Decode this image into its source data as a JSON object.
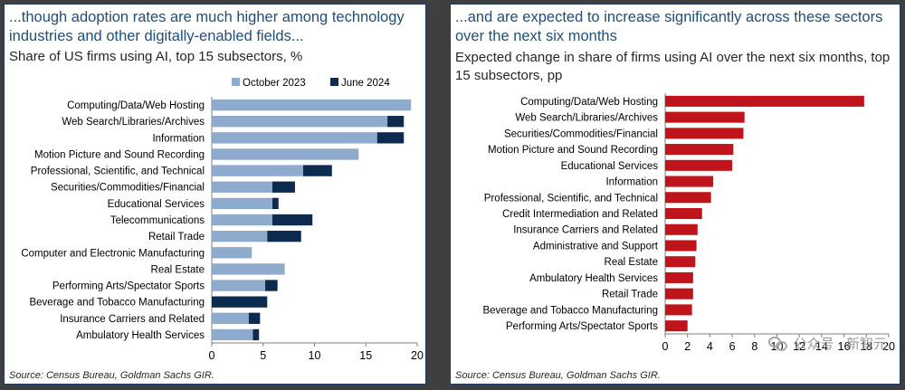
{
  "left_panel": {
    "headline": "...though adoption rates are much higher among technology industries and other digitally-enabled fields...",
    "subtitle": "Share of US firms using AI, top 15 subsectors, %",
    "source": "Source: Census Bureau, Goldman Sachs GIR."
  },
  "right_panel": {
    "headline": "...and are expected to increase significantly across these sectors over the next six months",
    "subtitle": "Expected change in share of firms using AI over the next six months, top 15 subsectors, pp",
    "source": "Source: Census Bureau, Goldman Sachs GIR."
  },
  "watermark": {
    "text": "公众号 · 新智元",
    "icon": "wechat-icon"
  },
  "colors": {
    "october_2023": "#8eaacc",
    "june_2024": "#0d2b4e",
    "expected_change": "#c0141c"
  },
  "chart_data": [
    {
      "type": "bar",
      "orientation": "horizontal",
      "stacked": true,
      "categories": [
        "Computing/Data/Web Hosting",
        "Web Search/Libraries/Archives",
        "Information",
        "Motion Picture and Sound Recording",
        "Professional, Scientific, and Technical",
        "Securities/Commodities/Financial",
        "Educational Services",
        "Telecommunications",
        "Retail Trade",
        "Computer and Electronic Manufacturing",
        "Real Estate",
        "Performing Arts/Spectator Sports",
        "Beverage and Tobacco Manufacturing",
        "Insurance Carriers and Related",
        "Ambulatory Health Services"
      ],
      "series": [
        {
          "name": "October 2023",
          "values": [
            19.4,
            17.1,
            16.1,
            14.3,
            8.9,
            5.9,
            5.9,
            5.9,
            5.4,
            3.9,
            7.1,
            5.2,
            0.0,
            3.6,
            4.0
          ]
        },
        {
          "name": "June 2024",
          "values": [
            0.0,
            1.6,
            2.6,
            0.0,
            2.8,
            2.2,
            0.6,
            3.9,
            3.3,
            0.0,
            0.0,
            1.2,
            5.4,
            1.1,
            0.6
          ]
        }
      ],
      "xlim": [
        0,
        20
      ],
      "xticks": [
        0,
        5,
        10,
        15,
        20
      ],
      "legend": "top-right"
    },
    {
      "type": "bar",
      "orientation": "horizontal",
      "categories": [
        "Computing/Data/Web Hosting",
        "Web Search/Libraries/Archives",
        "Securities/Commodities/Financial",
        "Motion Picture and Sound Recording",
        "Educational Services",
        "Information",
        "Professional, Scientific, and Technical",
        "Credit Intermediation and Related",
        "Insurance Carriers and Related",
        "Administrative and Support",
        "Real Estate",
        "Ambulatory Health Services",
        "Retail Trade",
        "Beverage and Tobacco Manufacturing",
        "Performing Arts/Spectator Sports"
      ],
      "values": [
        17.8,
        7.1,
        7.0,
        6.1,
        6.0,
        4.3,
        4.1,
        3.3,
        2.9,
        2.8,
        2.7,
        2.5,
        2.5,
        2.4,
        2.0
      ],
      "xlim": [
        0,
        20
      ],
      "xticks": [
        0,
        2,
        4,
        6,
        8,
        10,
        12,
        14,
        16,
        18,
        20
      ]
    }
  ]
}
